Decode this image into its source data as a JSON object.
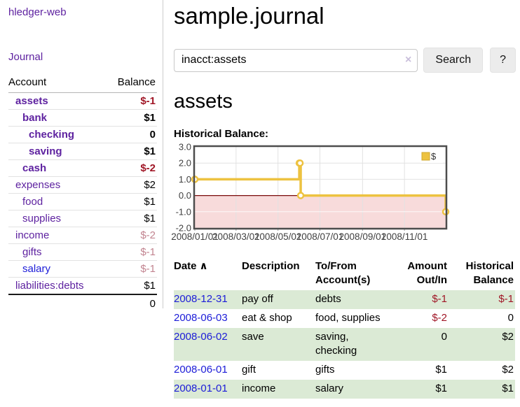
{
  "sidebar": {
    "app_title": "hledger-web",
    "journal_link": "Journal",
    "accounts_header": {
      "account": "Account",
      "balance": "Balance"
    },
    "accounts": [
      {
        "name": "assets",
        "balance": "$-1",
        "indent": 1,
        "bold": true
      },
      {
        "name": "bank",
        "balance": "$1",
        "indent": 2,
        "bold": true
      },
      {
        "name": "checking",
        "balance": "0",
        "indent": 3,
        "bold": true
      },
      {
        "name": "saving",
        "balance": "$1",
        "indent": 3,
        "bold": true
      },
      {
        "name": "cash",
        "balance": "$-2",
        "indent": 2,
        "bold": true
      },
      {
        "name": "expenses",
        "balance": "$2",
        "indent": 1,
        "bold": false
      },
      {
        "name": "food",
        "balance": "$1",
        "indent": 2,
        "bold": false
      },
      {
        "name": "supplies",
        "balance": "$1",
        "indent": 2,
        "bold": false
      },
      {
        "name": "income",
        "balance": "$-2",
        "indent": 1,
        "bold": false
      },
      {
        "name": "gifts",
        "balance": "$-1",
        "indent": 2,
        "bold": false
      },
      {
        "name": "salary",
        "balance": "$-1",
        "indent": 2,
        "bold": false,
        "blue": true
      },
      {
        "name": "liabilities:debts",
        "balance": "$1",
        "indent": 1,
        "bold": false
      }
    ],
    "total": "0"
  },
  "header": {
    "title": "sample.journal"
  },
  "search": {
    "value": "inacct:assets",
    "clear_icon": "×",
    "button": "Search",
    "help_button": "?"
  },
  "account_page": {
    "heading": "assets",
    "chart_title": "Historical Balance:"
  },
  "chart_data": {
    "type": "line",
    "step": true,
    "title": "Historical Balance",
    "series": [
      {
        "name": "$",
        "color": "#edc240",
        "points": [
          [
            "2008-01-01",
            1
          ],
          [
            "2008-06-01",
            2
          ],
          [
            "2008-06-02",
            2
          ],
          [
            "2008-06-03",
            0
          ],
          [
            "2008-12-31",
            -1
          ]
        ]
      }
    ],
    "ylim": [
      -2,
      3
    ],
    "yticks": [
      3.0,
      2.0,
      1.0,
      0.0,
      -1.0,
      -2.0
    ],
    "xticks": [
      "2008/01/01",
      "2008/03/01",
      "2008/05/01",
      "2008/07/01",
      "2008/09/01",
      "2008/11/01"
    ],
    "xrange": [
      "2008-01-01",
      "2008-12-31"
    ],
    "legend_position": "top-right",
    "grid": true,
    "negative_region_color": "#f8dbdb",
    "zero_line_color": "#7a0c0c",
    "gridline_color": "#e2e2e2",
    "border_color": "#4d4d4d"
  },
  "register": {
    "header": {
      "date": "Date",
      "description": "Description",
      "accounts": "To/From Account(s)",
      "amount": "Amount Out/In",
      "balance": "Historical Balance"
    },
    "sort_icon": "∧",
    "rows": [
      {
        "date": "2008-12-31",
        "description": "pay off",
        "accounts": "debts",
        "amount": "$-1",
        "balance": "$-1"
      },
      {
        "date": "2008-06-03",
        "description": "eat & shop",
        "accounts": "food, supplies",
        "amount": "$-2",
        "balance": "0"
      },
      {
        "date": "2008-06-02",
        "description": "save",
        "accounts": "saving, checking",
        "amount": "0",
        "balance": "$2"
      },
      {
        "date": "2008-06-01",
        "description": "gift",
        "accounts": "gifts",
        "amount": "$1",
        "balance": "$2"
      },
      {
        "date": "2008-01-01",
        "description": "income",
        "accounts": "salary",
        "amount": "$1",
        "balance": "$1"
      }
    ]
  }
}
